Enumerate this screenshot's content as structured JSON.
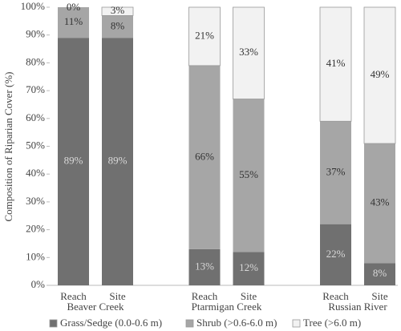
{
  "chart_data": {
    "type": "stacked-bar",
    "ylabel": "Composition of Riparian Cover (%)",
    "groups": [
      "Beaver Creek",
      "Ptarmigan Creek",
      "Russian River"
    ],
    "categories": [
      "Reach",
      "Site",
      "Reach",
      "Site",
      "Reach",
      "Site"
    ],
    "series": [
      {
        "name": "Grass/Sedge (0.0-0.6 m)",
        "color": "#707070",
        "values": [
          89,
          89,
          13,
          12,
          22,
          8
        ],
        "value_labels": [
          "89%",
          "89%",
          "13%",
          "12%",
          "22%",
          "8%"
        ]
      },
      {
        "name": "Shrub (>0.6-6.0 m)",
        "color": "#a6a6a6",
        "values": [
          11,
          8,
          66,
          55,
          37,
          43
        ],
        "value_labels": [
          "11%",
          "8%",
          "66%",
          "55%",
          "37%",
          "43%"
        ]
      },
      {
        "name": "Tree (>6.0 m)",
        "color": "#f2f2f2",
        "values": [
          0,
          3,
          21,
          33,
          41,
          49
        ],
        "value_labels": [
          "0%",
          "3%",
          "21%",
          "33%",
          "41%",
          "49%"
        ]
      }
    ],
    "ylim": [
      0,
      100
    ],
    "yticks": [
      {
        "value": 0,
        "label": "0%"
      },
      {
        "value": 10,
        "label": "10%"
      },
      {
        "value": 20,
        "label": "20%"
      },
      {
        "value": 30,
        "label": "30%"
      },
      {
        "value": 40,
        "label": "40%"
      },
      {
        "value": 50,
        "label": "50%"
      },
      {
        "value": 60,
        "label": "60%"
      },
      {
        "value": 70,
        "label": "70%"
      },
      {
        "value": 80,
        "label": "80%"
      },
      {
        "value": 90,
        "label": "90%"
      },
      {
        "value": 100,
        "label": "100%"
      }
    ],
    "grid": false,
    "legend": "bottom"
  }
}
